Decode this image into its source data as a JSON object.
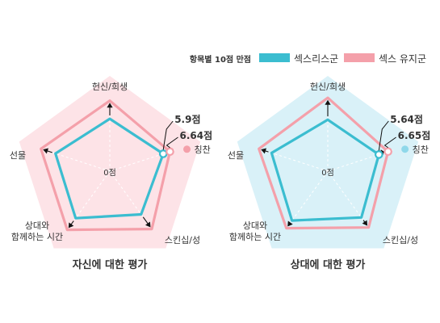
{
  "legend": {
    "note": "항목별 10점 만점",
    "items": [
      {
        "label": "섹스리스군",
        "color": "#3bbdd0"
      },
      {
        "label": "섹스 유지군",
        "color": "#f4a0aa"
      }
    ]
  },
  "colors": {
    "left_bg": "#fde3e7",
    "right_bg": "#d9f1f8",
    "left_accent": "#f4a0aa",
    "right_accent": "#8fd8ea",
    "sexless": "#3bbdd0",
    "active": "#f4a0aa"
  },
  "chart_data": [
    {
      "type": "radar",
      "title": "자신에 대한 평가",
      "axes": [
        "헌신/희생",
        "칭찬",
        "스킨십/성",
        "상대와\n함께하는 시간",
        "선물"
      ],
      "center_label": "0점",
      "max": 10,
      "series": [
        {
          "name": "섹스리스군",
          "values": [
            5.5,
            5.9,
            5.6,
            6.1,
            6.0
          ]
        },
        {
          "name": "섹스 유지군",
          "values": [
            7.4,
            6.64,
            7.5,
            7.6,
            7.6
          ]
        }
      ],
      "annotations": [
        {
          "series": "섹스리스군",
          "axis": "칭찬",
          "text": "5.9점"
        },
        {
          "series": "섹스 유지군",
          "axis": "칭찬",
          "text": "6.64점"
        }
      ],
      "highlight_axis": "칭찬"
    },
    {
      "type": "radar",
      "title": "상대에 대한 평가",
      "axes": [
        "헌신/희생",
        "칭찬",
        "스킨십/성",
        "상대와\n함께하는 시간",
        "선물"
      ],
      "center_label": "0점",
      "max": 10,
      "series": [
        {
          "name": "섹스리스군",
          "values": [
            5.4,
            5.64,
            6.0,
            6.4,
            6.2
          ]
        },
        {
          "name": "섹스 유지군",
          "values": [
            7.7,
            6.65,
            7.3,
            7.4,
            7.6
          ]
        }
      ],
      "annotations": [
        {
          "series": "섹스리스군",
          "axis": "칭찬",
          "text": "5.64점"
        },
        {
          "series": "섹스 유지군",
          "axis": "칭찬",
          "text": "6.65점"
        }
      ],
      "highlight_axis": "칭찬"
    }
  ]
}
